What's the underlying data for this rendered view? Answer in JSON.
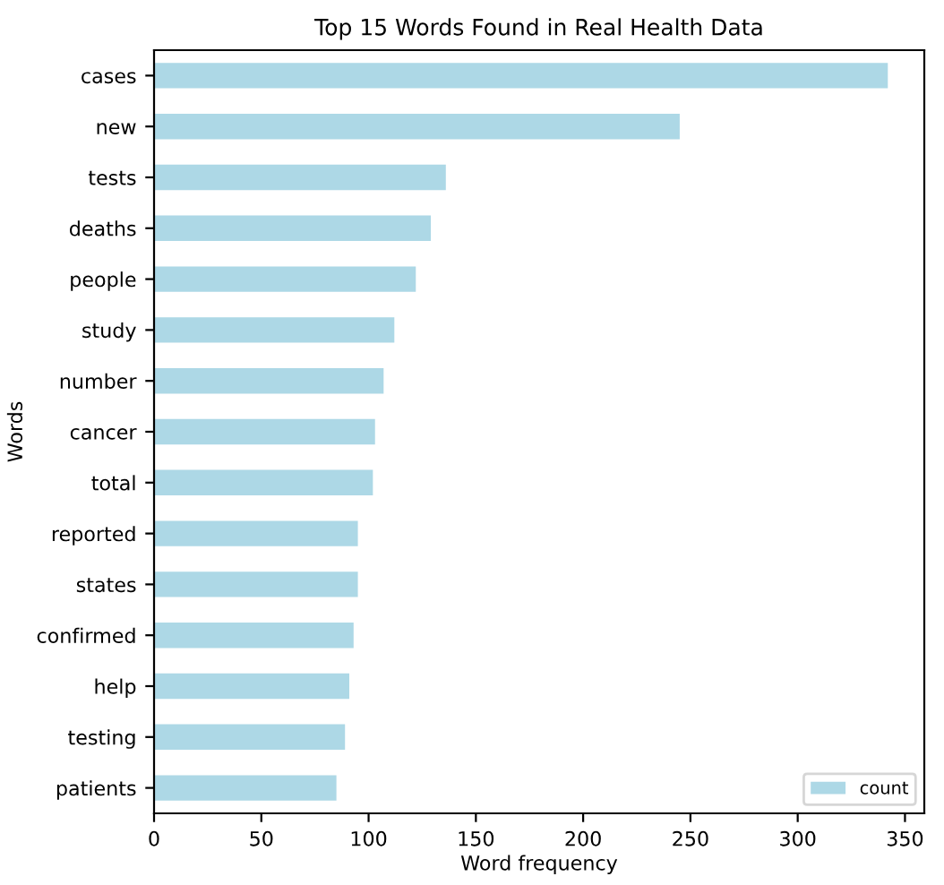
{
  "chart_data": {
    "type": "bar",
    "orientation": "horizontal",
    "title": "Top 15 Words Found in Real Health Data",
    "xlabel": "Word frequency",
    "ylabel": "Words",
    "categories": [
      "cases",
      "new",
      "tests",
      "deaths",
      "people",
      "study",
      "number",
      "cancer",
      "total",
      "reported",
      "states",
      "confirmed",
      "help",
      "testing",
      "patients"
    ],
    "series": [
      {
        "name": "count",
        "color": "#add8e6",
        "values": [
          342,
          245,
          136,
          129,
          122,
          112,
          107,
          103,
          102,
          95,
          95,
          93,
          91,
          89,
          85
        ]
      }
    ],
    "xlim": [
      0,
      359
    ],
    "xticks": [
      0,
      50,
      100,
      150,
      200,
      250,
      300,
      350
    ],
    "grid": false,
    "legend": "bottom right"
  }
}
